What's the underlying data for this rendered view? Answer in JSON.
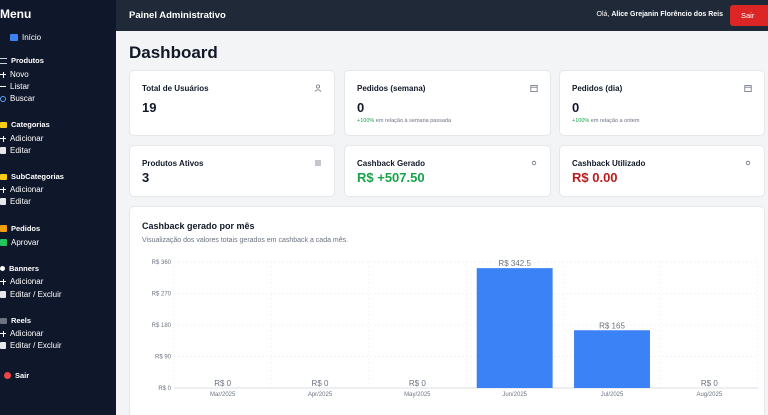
{
  "sidebar": {
    "title": "Menu",
    "items": [
      {
        "label": "Início",
        "icon": "home-icon"
      },
      {
        "label": "Produtos",
        "icon": "products-icon"
      },
      {
        "label": "Novo",
        "icon": "plus-icon"
      },
      {
        "label": "Listar",
        "icon": "list-icon"
      },
      {
        "label": "Buscar",
        "icon": "search-icon"
      },
      {
        "label": "Categorias",
        "icon": "folder-icon"
      },
      {
        "label": "Adicionar",
        "icon": "plus-icon"
      },
      {
        "label": "Editar",
        "icon": "edit-icon"
      },
      {
        "label": "SubCategorias",
        "icon": "folder-icon"
      },
      {
        "label": "Adicionar",
        "icon": "plus-icon"
      },
      {
        "label": "Editar",
        "icon": "edit-icon"
      },
      {
        "label": "Pedidos",
        "icon": "box-icon"
      },
      {
        "label": "Aprovar",
        "icon": "check-icon"
      },
      {
        "label": "Banners",
        "icon": "image-icon"
      },
      {
        "label": "Adicionar",
        "icon": "plus-icon"
      },
      {
        "label": "Editar / Excluir",
        "icon": "edit-icon"
      },
      {
        "label": "Reels",
        "icon": "film-icon"
      },
      {
        "label": "Adicionar",
        "icon": "plus-icon"
      },
      {
        "label": "Editar / Excluir",
        "icon": "edit-icon"
      },
      {
        "label": "Sair",
        "icon": "stop-icon"
      }
    ]
  },
  "header": {
    "title": "Painel Administrativo",
    "greeting_prefix": "Olá,",
    "user_name": "Alice Grejanin Florêncio dos Reis",
    "logout_label": "Sair"
  },
  "page": {
    "title": "Dashboard"
  },
  "cards": [
    {
      "title": "Total de Usuários",
      "value": "19",
      "note_pos": "",
      "note": "",
      "icon": "user-icon"
    },
    {
      "title": "Pedidos (semana)",
      "value": "0",
      "note_pos": "+100%",
      "note": " em relação à semana passada",
      "icon": "calendar-icon"
    },
    {
      "title": "Pedidos (dia)",
      "value": "0",
      "note_pos": "+100%",
      "note": " em relação a ontem",
      "icon": "calendar-icon"
    },
    {
      "title": "Produtos Ativos",
      "value": "3",
      "icon": "list-icon"
    },
    {
      "title": "Cashback Gerado",
      "value": "R$ +507.50",
      "icon": "sparkle-icon",
      "value_color": "#16a34a"
    },
    {
      "title": "Cashback Utilizado",
      "value": "R$ 0.00",
      "icon": "sparkle-icon",
      "value_color": "#b91c1c"
    }
  ],
  "chart": {
    "title": "Cashback gerado por mês",
    "subtitle": "Visualização dos valores totais gerados em cashback a cada mês."
  },
  "chart_data": {
    "type": "bar",
    "categories": [
      "Mar/2025",
      "Apr/2025",
      "May/2025",
      "Jun/2025",
      "Jul/2025",
      "Aug/2025"
    ],
    "values": [
      0,
      0,
      0,
      342.5,
      165,
      0
    ],
    "data_labels": [
      "R$ 0",
      "R$ 0",
      "R$ 0",
      "R$ 342.5",
      "R$ 165",
      "R$ 0"
    ],
    "ytick_labels": [
      "R$ 0",
      "R$ 90",
      "R$ 180",
      "R$ 270",
      "R$ 360"
    ],
    "yticks": [
      0,
      90,
      180,
      270,
      360
    ],
    "ylim": [
      0,
      360
    ],
    "grid": true,
    "bar_color": "#3b82f6"
  }
}
